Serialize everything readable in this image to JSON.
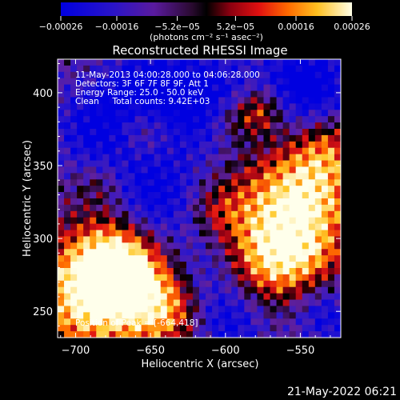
{
  "chart_data": {
    "type": "heatmap",
    "title": "Reconstructed RHESSI Image",
    "xlabel": "Heliocentric X (arcsec)",
    "ylabel": "Heliocentric Y (arcsec)",
    "xlim": [
      -712,
      -523
    ],
    "ylim": [
      232,
      423
    ],
    "x_ticks": [
      -700,
      -650,
      -600,
      -550
    ],
    "y_ticks": [
      250,
      300,
      350,
      400
    ],
    "x_tick_labels": [
      "−700",
      "−650",
      "−600",
      "−550"
    ],
    "y_tick_labels": [
      "250",
      "300",
      "350",
      "400"
    ],
    "colorbar": {
      "tick_values": [
        -0.00026,
        -0.00016,
        -5.2e-05,
        5.2e-05,
        0.00016,
        0.00026
      ],
      "tick_labels": [
        "−0.00026",
        "−0.00016",
        "−5.2e−05",
        "5.2e−05",
        "0.00016",
        "0.00026"
      ],
      "units_label": "(photons cm⁻² s⁻¹ asec⁻²)",
      "range": [
        -0.00026,
        0.00026
      ]
    },
    "annotations": [
      "11-May-2013 04:00:28.000 to 04:06:28.000",
      "Detectors: 3F 6F 7F 8F 9F, Att 1",
      "Energy Range: 25.0 - 50.0 keV",
      "Clean     Total counts: 9.42E+03"
    ],
    "peak_label": "Position of Peak = [-664,418]",
    "grid": false
  },
  "footer": {
    "timestamp": "21-May-2022 06:21"
  },
  "colors": {
    "background": "#000000",
    "foreground": "#ffffff"
  }
}
